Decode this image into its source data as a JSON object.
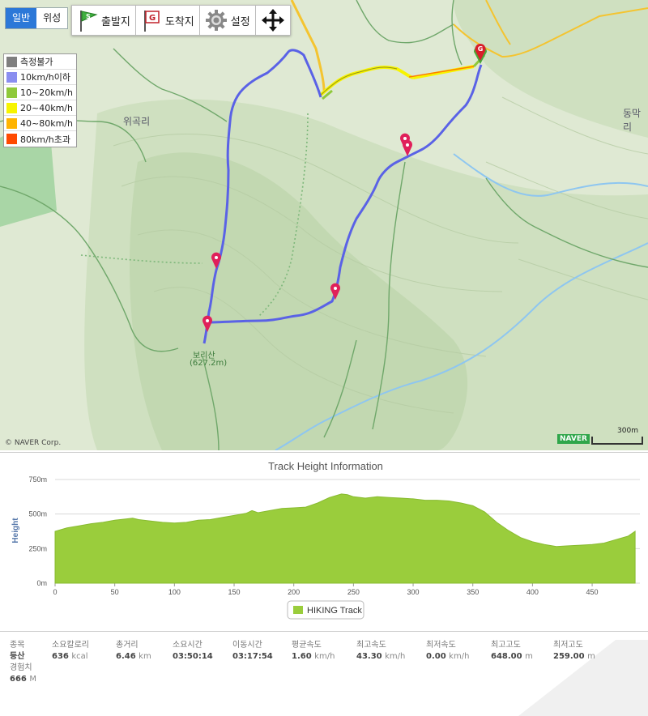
{
  "map": {
    "type_buttons": [
      {
        "label": "일반",
        "active": true
      },
      {
        "label": "위성",
        "active": false
      }
    ],
    "toolbar": {
      "start_label": "출발지",
      "goal_label": "도착지",
      "settings_label": "설정",
      "move_icon": "move-arrows-icon"
    },
    "legend": [
      {
        "label": "측정불가",
        "color": "#7f7f7f"
      },
      {
        "label": "10km/h이하",
        "color": "#8a8ef0"
      },
      {
        "label": "10~20km/h",
        "color": "#8fc93a"
      },
      {
        "label": "20~40km/h",
        "color": "#f7f400"
      },
      {
        "label": "40~80km/h",
        "color": "#ffb400"
      },
      {
        "label": "80km/h초과",
        "color": "#ff4a00"
      }
    ],
    "place_labels": {
      "village_left": "위곡리",
      "village_right": "동막리",
      "peak_name": "보리산",
      "peak_height": "(627.2m)"
    },
    "copyright": "© NAVER Corp.",
    "naver_logo": "NAVER",
    "scale_label": "300m",
    "track_color": "#5a62e6",
    "road_color": "#f4c430"
  },
  "chart_data": {
    "type": "area",
    "title": "Track Height Information",
    "xlabel": "",
    "ylabel": "Height",
    "xlim": [
      0,
      490
    ],
    "ylim": [
      0,
      750
    ],
    "x_ticks": [
      0,
      50,
      100,
      150,
      200,
      250,
      300,
      350,
      400,
      450
    ],
    "y_ticks": [
      0,
      250,
      500,
      750
    ],
    "y_tick_labels": [
      "0m",
      "250m",
      "500m",
      "750m"
    ],
    "grid": true,
    "legend_position": "bottom-center",
    "series": [
      {
        "name": "HIKING Track",
        "color": "#9acd3c",
        "x": [
          0,
          10,
          20,
          30,
          40,
          50,
          60,
          65,
          70,
          80,
          90,
          100,
          110,
          120,
          130,
          140,
          150,
          160,
          165,
          170,
          180,
          190,
          200,
          210,
          220,
          230,
          240,
          245,
          250,
          260,
          270,
          280,
          290,
          300,
          310,
          320,
          330,
          340,
          350,
          360,
          370,
          380,
          390,
          400,
          410,
          420,
          430,
          440,
          450,
          460,
          470,
          480,
          486
        ],
        "y": [
          375,
          400,
          415,
          430,
          440,
          455,
          465,
          470,
          460,
          450,
          440,
          435,
          440,
          455,
          460,
          475,
          490,
          505,
          525,
          510,
          525,
          540,
          545,
          550,
          580,
          620,
          645,
          640,
          625,
          615,
          625,
          620,
          615,
          610,
          600,
          600,
          595,
          580,
          560,
          515,
          440,
          380,
          330,
          300,
          280,
          265,
          270,
          275,
          280,
          290,
          315,
          340,
          375
        ]
      }
    ]
  },
  "stats": {
    "type": {
      "label": "종목",
      "value": "등산"
    },
    "calories": {
      "label": "소요칼로리",
      "value": "636",
      "unit": "kcal"
    },
    "distance": {
      "label": "총거리",
      "value": "6.46",
      "unit": "km"
    },
    "duration": {
      "label": "소요시간",
      "value": "03:50:14"
    },
    "moving_time": {
      "label": "이동시간",
      "value": "03:17:54"
    },
    "avg_speed": {
      "label": "평균속도",
      "value": "1.60",
      "unit": "km/h"
    },
    "max_speed": {
      "label": "최고속도",
      "value": "43.30",
      "unit": "km/h"
    },
    "min_speed": {
      "label": "최저속도",
      "value": "0.00",
      "unit": "km/h"
    },
    "max_alt": {
      "label": "최고고도",
      "value": "648.00",
      "unit": "m"
    },
    "min_alt": {
      "label": "최저고도",
      "value": "259.00",
      "unit": "m"
    },
    "experience": {
      "label": "경험치",
      "value": "666",
      "unit": "M"
    }
  }
}
